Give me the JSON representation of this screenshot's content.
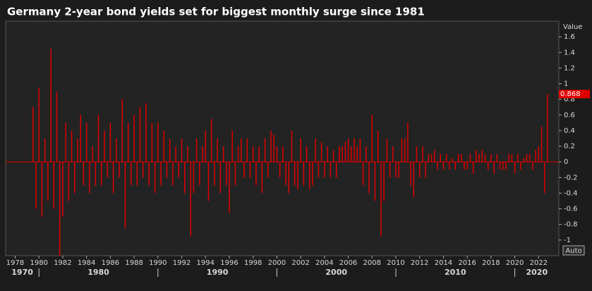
{
  "chart_data": {
    "type": "bar",
    "title": "Germany 2-year bond yields set for biggest monthly surge since 1981",
    "y_axis_label": "Value",
    "scale_button": "Auto",
    "x": [
      1979.5,
      1979.75,
      1980,
      1980.25,
      1980.5,
      1980.75,
      1981,
      1981.25,
      1981.5,
      1981.75,
      1982,
      1982.25,
      1982.5,
      1982.75,
      1983,
      1983.25,
      1983.5,
      1983.75,
      1984,
      1984.25,
      1984.5,
      1984.75,
      1985,
      1985.25,
      1985.5,
      1985.75,
      1986,
      1986.25,
      1986.5,
      1986.75,
      1987,
      1987.25,
      1987.5,
      1987.75,
      1988,
      1988.25,
      1988.5,
      1988.75,
      1989,
      1989.25,
      1989.5,
      1989.75,
      1990,
      1990.25,
      1990.5,
      1990.75,
      1991,
      1991.25,
      1991.5,
      1991.75,
      1992,
      1992.25,
      1992.5,
      1992.75,
      1993,
      1993.25,
      1993.5,
      1993.75,
      1994,
      1994.25,
      1994.5,
      1994.75,
      1995,
      1995.25,
      1995.5,
      1995.75,
      1996,
      1996.25,
      1996.5,
      1996.75,
      1997,
      1997.25,
      1997.5,
      1997.75,
      1998,
      1998.25,
      1998.5,
      1998.75,
      1999,
      1999.25,
      1999.5,
      1999.75,
      2000,
      2000.25,
      2000.5,
      2000.75,
      2001,
      2001.25,
      2001.5,
      2001.75,
      2002,
      2002.25,
      2002.5,
      2002.75,
      2003,
      2003.25,
      2003.5,
      2003.75,
      2004,
      2004.25,
      2004.5,
      2004.75,
      2005,
      2005.25,
      2005.5,
      2005.75,
      2006,
      2006.25,
      2006.5,
      2006.75,
      2007,
      2007.25,
      2007.5,
      2007.75,
      2008,
      2008.25,
      2008.5,
      2008.75,
      2009,
      2009.25,
      2009.5,
      2009.75,
      2010,
      2010.25,
      2010.5,
      2010.75,
      2011,
      2011.25,
      2011.5,
      2011.75,
      2012,
      2012.25,
      2012.5,
      2012.75,
      2013,
      2013.25,
      2013.5,
      2013.75,
      2014,
      2014.25,
      2014.5,
      2014.75,
      2015,
      2015.25,
      2015.5,
      2015.75,
      2016,
      2016.25,
      2016.5,
      2016.75,
      2017,
      2017.25,
      2017.5,
      2017.75,
      2018,
      2018.25,
      2018.5,
      2018.75,
      2019,
      2019.25,
      2019.5,
      2019.75,
      2020,
      2020.25,
      2020.5,
      2020.75,
      2021,
      2021.25,
      2021.5,
      2021.75,
      2022,
      2022.25,
      2022.5,
      2022.75
    ],
    "series": [
      {
        "name": "Value",
        "color": "#e00000",
        "values": [
          0.7,
          -0.6,
          0.95,
          -0.7,
          0.3,
          -0.5,
          1.45,
          -0.6,
          0.9,
          -1.2,
          -0.7,
          0.5,
          -0.5,
          0.4,
          -0.4,
          0.3,
          0.6,
          -0.3,
          0.5,
          -0.4,
          0.2,
          -0.3,
          0.6,
          -0.3,
          0.4,
          -0.2,
          0.5,
          -0.4,
          0.3,
          -0.2,
          0.8,
          -0.85,
          0.5,
          -0.3,
          0.6,
          -0.3,
          0.7,
          -0.2,
          0.75,
          -0.3,
          0.5,
          -0.4,
          0.5,
          -0.3,
          0.4,
          -0.2,
          0.3,
          -0.3,
          0.2,
          -0.2,
          0.3,
          -0.4,
          0.2,
          -0.95,
          -0.4,
          0.3,
          -0.3,
          0.2,
          0.4,
          -0.5,
          0.55,
          -0.3,
          0.3,
          -0.4,
          0.2,
          -0.3,
          -0.65,
          0.4,
          -0.3,
          0.2,
          0.3,
          -0.2,
          0.3,
          -0.2,
          0.2,
          -0.3,
          0.2,
          -0.4,
          0.3,
          -0.2,
          0.4,
          0.35,
          0.2,
          -0.2,
          0.2,
          -0.3,
          -0.4,
          0.4,
          -0.3,
          -0.35,
          0.3,
          -0.3,
          0.2,
          -0.35,
          -0.3,
          0.3,
          -0.2,
          0.25,
          -0.2,
          0.2,
          -0.2,
          0.15,
          -0.2,
          0.2,
          0.2,
          0.25,
          0.3,
          0.2,
          0.3,
          0.2,
          0.3,
          -0.3,
          0.2,
          -0.4,
          0.6,
          -0.5,
          0.4,
          -0.95,
          -0.5,
          0.3,
          -0.2,
          0.2,
          -0.2,
          -0.2,
          0.3,
          0.3,
          0.5,
          -0.3,
          -0.45,
          0.2,
          -0.2,
          0.2,
          -0.2,
          0.1,
          0.1,
          0.15,
          -0.1,
          0.1,
          -0.1,
          0.1,
          -0.1,
          0.05,
          -0.1,
          0.1,
          0.1,
          -0.1,
          -0.1,
          0.1,
          -0.15,
          0.15,
          0.1,
          0.15,
          0.1,
          -0.1,
          0.1,
          -0.15,
          0.1,
          -0.1,
          -0.1,
          -0.1,
          0.1,
          0.1,
          -0.15,
          0.1,
          -0.1,
          0.05,
          0.1,
          0.1,
          -0.1,
          0.15,
          0.2,
          0.45,
          -0.4,
          0.868
        ]
      }
    ],
    "xlim": [
      1977.2,
      2023.7
    ],
    "xticks": [
      1978,
      1980,
      1982,
      1984,
      1986,
      1988,
      1990,
      1992,
      1994,
      1996,
      1998,
      2000,
      2002,
      2004,
      2006,
      2008,
      2010,
      2012,
      2014,
      2016,
      2018,
      2020,
      2022
    ],
    "decade_ticks": [
      1970,
      1980,
      1990,
      2000,
      2010,
      2020
    ],
    "ylim": [
      -1.2,
      1.8
    ],
    "yticks": [
      -1,
      -0.8,
      -0.6,
      -0.4,
      -0.2,
      0,
      0.2,
      0.4,
      0.6,
      0.8,
      1,
      1.2,
      1.4,
      1.6
    ],
    "grid": false
  }
}
